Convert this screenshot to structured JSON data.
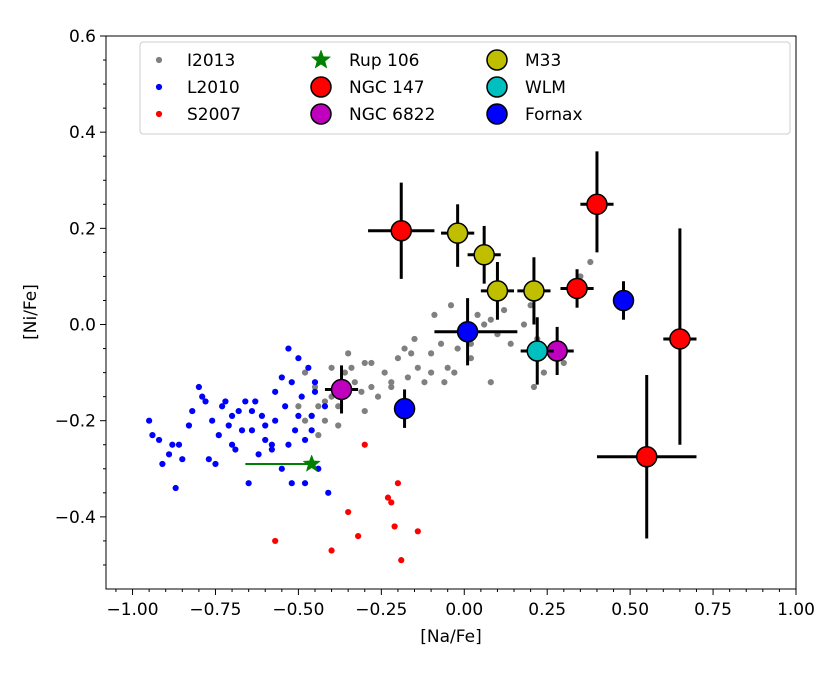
{
  "chart_data": {
    "type": "scatter",
    "xlabel": "[Na/Fe]",
    "ylabel": "[Ni/Fe]",
    "xlim": [
      -1.08,
      1.0
    ],
    "ylim": [
      -0.55,
      0.6
    ],
    "xticks": [
      -1.0,
      -0.75,
      -0.5,
      -0.25,
      0.0,
      0.25,
      0.5,
      0.75,
      1.0
    ],
    "xtick_labels": [
      "−1.00",
      "−0.75",
      "−0.50",
      "−0.25",
      "0.00",
      "0.25",
      "0.50",
      "0.75",
      "1.00"
    ],
    "yticks": [
      -0.4,
      -0.2,
      0.0,
      0.2,
      0.4,
      0.6
    ],
    "ytick_labels": [
      "−0.4",
      "−0.2",
      "0.0",
      "0.2",
      "0.4",
      "0.6"
    ],
    "legend_position": "top",
    "series": [
      {
        "name": "I2013",
        "kind": "small",
        "color": "#808080",
        "points": [
          [
            -0.48,
            -0.2
          ],
          [
            -0.46,
            -0.19
          ],
          [
            -0.44,
            -0.17
          ],
          [
            -0.42,
            -0.16
          ],
          [
            -0.4,
            -0.15
          ],
          [
            -0.38,
            -0.17
          ],
          [
            -0.36,
            -0.1
          ],
          [
            -0.35,
            -0.06
          ],
          [
            -0.33,
            -0.12
          ],
          [
            -0.31,
            -0.14
          ],
          [
            -0.3,
            -0.08
          ],
          [
            -0.28,
            -0.13
          ],
          [
            -0.26,
            -0.15
          ],
          [
            -0.24,
            -0.1
          ],
          [
            -0.22,
            -0.13
          ],
          [
            -0.2,
            -0.07
          ],
          [
            -0.18,
            -0.05
          ],
          [
            -0.17,
            -0.11
          ],
          [
            -0.15,
            -0.03
          ],
          [
            -0.14,
            -0.09
          ],
          [
            -0.12,
            -0.12
          ],
          [
            -0.1,
            -0.06
          ],
          [
            -0.09,
            0.02
          ],
          [
            -0.07,
            -0.04
          ],
          [
            -0.05,
            -0.09
          ],
          [
            -0.04,
            0.04
          ],
          [
            -0.02,
            -0.05
          ],
          [
            0.0,
            -0.02
          ],
          [
            0.02,
            -0.07
          ],
          [
            0.04,
            0.02
          ],
          [
            0.06,
            0.0
          ],
          [
            0.08,
            0.01
          ],
          [
            0.1,
            -0.02
          ],
          [
            0.12,
            0.03
          ],
          [
            0.14,
            -0.04
          ],
          [
            0.18,
            0.0
          ],
          [
            0.2,
            0.04
          ],
          [
            0.22,
            -0.03
          ],
          [
            0.24,
            -0.1
          ],
          [
            0.3,
            -0.08
          ],
          [
            0.35,
            0.1
          ],
          [
            0.38,
            0.13
          ],
          [
            -0.48,
            -0.1
          ],
          [
            -0.44,
            -0.23
          ],
          [
            -0.4,
            -0.09
          ],
          [
            -0.42,
            -0.2
          ],
          [
            -0.34,
            -0.09
          ],
          [
            -0.28,
            -0.08
          ],
          [
            -0.22,
            -0.12
          ],
          [
            -0.16,
            -0.06
          ],
          [
            -0.1,
            -0.1
          ],
          [
            -0.06,
            -0.12
          ],
          [
            -0.03,
            -0.1
          ],
          [
            0.02,
            -0.04
          ],
          [
            0.08,
            -0.12
          ],
          [
            0.21,
            -0.13
          ],
          [
            -0.5,
            -0.17
          ],
          [
            -0.45,
            -0.13
          ],
          [
            -0.38,
            -0.21
          ],
          [
            -0.3,
            -0.18
          ]
        ]
      },
      {
        "name": "L2010",
        "kind": "small",
        "color": "#0000ff",
        "points": [
          [
            -0.95,
            -0.2
          ],
          [
            -0.94,
            -0.23
          ],
          [
            -0.92,
            -0.24
          ],
          [
            -0.91,
            -0.29
          ],
          [
            -0.88,
            -0.25
          ],
          [
            -0.87,
            -0.34
          ],
          [
            -0.86,
            -0.25
          ],
          [
            -0.85,
            -0.28
          ],
          [
            -0.82,
            -0.18
          ],
          [
            -0.8,
            -0.13
          ],
          [
            -0.79,
            -0.15
          ],
          [
            -0.77,
            -0.28
          ],
          [
            -0.76,
            -0.2
          ],
          [
            -0.75,
            -0.29
          ],
          [
            -0.74,
            -0.23
          ],
          [
            -0.72,
            -0.16
          ],
          [
            -0.71,
            -0.21
          ],
          [
            -0.69,
            -0.26
          ],
          [
            -0.68,
            -0.18
          ],
          [
            -0.66,
            -0.16
          ],
          [
            -0.64,
            -0.22
          ],
          [
            -0.63,
            -0.16
          ],
          [
            -0.61,
            -0.19
          ],
          [
            -0.6,
            -0.21
          ],
          [
            -0.58,
            -0.25
          ],
          [
            -0.57,
            -0.2
          ],
          [
            -0.55,
            -0.11
          ],
          [
            -0.54,
            -0.17
          ],
          [
            -0.52,
            -0.12
          ],
          [
            -0.51,
            -0.22
          ],
          [
            -0.5,
            -0.19
          ],
          [
            -0.48,
            -0.24
          ],
          [
            -0.46,
            -0.19
          ],
          [
            -0.45,
            -0.14
          ],
          [
            -0.44,
            -0.3
          ],
          [
            -0.42,
            -0.17
          ],
          [
            -0.41,
            -0.35
          ],
          [
            -0.53,
            -0.05
          ],
          [
            -0.5,
            -0.07
          ],
          [
            -0.47,
            -0.09
          ],
          [
            -0.45,
            -0.12
          ],
          [
            -0.48,
            -0.33
          ],
          [
            -0.52,
            -0.33
          ],
          [
            -0.55,
            -0.3
          ],
          [
            -0.58,
            -0.26
          ],
          [
            -0.6,
            -0.24
          ],
          [
            -0.62,
            -0.27
          ],
          [
            -0.65,
            -0.33
          ],
          [
            -0.67,
            -0.22
          ],
          [
            -0.7,
            -0.19
          ],
          [
            -0.73,
            -0.17
          ],
          [
            -0.78,
            -0.16
          ],
          [
            -0.83,
            -0.21
          ],
          [
            -0.89,
            -0.27
          ],
          [
            -0.49,
            -0.15
          ],
          [
            -0.57,
            -0.14
          ],
          [
            -0.53,
            -0.25
          ],
          [
            -0.46,
            -0.22
          ],
          [
            -0.64,
            -0.18
          ],
          [
            -0.7,
            -0.25
          ]
        ]
      },
      {
        "name": "S2007",
        "kind": "small",
        "color": "#ff0000",
        "points": [
          [
            -0.57,
            -0.45
          ],
          [
            -0.4,
            -0.47
          ],
          [
            -0.35,
            -0.39
          ],
          [
            -0.32,
            -0.44
          ],
          [
            -0.3,
            -0.25
          ],
          [
            -0.23,
            -0.36
          ],
          [
            -0.22,
            -0.37
          ],
          [
            -0.2,
            -0.33
          ],
          [
            -0.21,
            -0.42
          ],
          [
            -0.19,
            -0.49
          ],
          [
            -0.14,
            -0.43
          ]
        ]
      },
      {
        "name": "Rup 106",
        "kind": "star",
        "color": "#008000",
        "points": [
          [
            -0.46,
            -0.29
          ]
        ],
        "xerr": [
          [
            0.2,
            0.0
          ]
        ]
      },
      {
        "name": "NGC 147",
        "kind": "big",
        "color": "#ff0000",
        "points": [
          [
            -0.19,
            0.195
          ],
          [
            0.4,
            0.25
          ],
          [
            0.34,
            0.075
          ],
          [
            0.65,
            -0.03
          ],
          [
            0.55,
            -0.275
          ]
        ],
        "xerr": [
          [
            0.1,
            0.1
          ],
          [
            0.05,
            0.05
          ],
          [
            0.05,
            0.05
          ],
          [
            0.05,
            0.05
          ],
          [
            0.15,
            0.15
          ]
        ],
        "yerr": [
          [
            0.1,
            0.1
          ],
          [
            0.1,
            0.11
          ],
          [
            0.04,
            0.04
          ],
          [
            0.22,
            0.23
          ],
          [
            0.17,
            0.17
          ]
        ]
      },
      {
        "name": "NGC 6822",
        "kind": "big",
        "color": "#bf00bf",
        "points": [
          [
            -0.37,
            -0.135
          ],
          [
            0.28,
            -0.055
          ]
        ],
        "xerr": [
          [
            0.05,
            0.05
          ],
          [
            0.05,
            0.05
          ]
        ],
        "yerr": [
          [
            0.05,
            0.05
          ],
          [
            0.05,
            0.05
          ]
        ]
      },
      {
        "name": "M33",
        "kind": "big",
        "color": "#bfbf00",
        "points": [
          [
            -0.02,
            0.19
          ],
          [
            0.06,
            0.145
          ],
          [
            0.1,
            0.07
          ],
          [
            0.21,
            0.07
          ]
        ],
        "xerr": [
          [
            0.05,
            0.05
          ],
          [
            0.05,
            0.05
          ],
          [
            0.05,
            0.05
          ],
          [
            0.05,
            0.05
          ]
        ],
        "yerr": [
          [
            0.07,
            0.06
          ],
          [
            0.06,
            0.06
          ],
          [
            0.06,
            0.06
          ],
          [
            0.07,
            0.07
          ]
        ]
      },
      {
        "name": "WLM",
        "kind": "big",
        "color": "#00bfbf",
        "points": [
          [
            0.22,
            -0.055
          ]
        ],
        "xerr": [
          [
            0.05,
            0.05
          ]
        ],
        "yerr": [
          [
            0.07,
            0.07
          ]
        ]
      },
      {
        "name": "Fornax",
        "kind": "big",
        "color": "#0000ff",
        "points": [
          [
            0.01,
            -0.015
          ],
          [
            -0.18,
            -0.175
          ],
          [
            0.48,
            0.05
          ]
        ],
        "xerr": [
          [
            0.1,
            0.15
          ],
          [
            0.03,
            0.03
          ],
          [
            0.03,
            0.03
          ]
        ],
        "yerr": [
          [
            0.07,
            0.07
          ],
          [
            0.04,
            0.04
          ],
          [
            0.04,
            0.04
          ]
        ]
      }
    ],
    "legend": [
      {
        "label": "I2013",
        "series": 0
      },
      {
        "label": "L2010",
        "series": 1
      },
      {
        "label": "S2007",
        "series": 2
      },
      {
        "label": "Rup 106",
        "series": 3
      },
      {
        "label": "NGC 147",
        "series": 4
      },
      {
        "label": "NGC 6822",
        "series": 5
      },
      {
        "label": "M33",
        "series": 6
      },
      {
        "label": "WLM",
        "series": 7
      },
      {
        "label": "Fornax",
        "series": 8
      }
    ]
  }
}
